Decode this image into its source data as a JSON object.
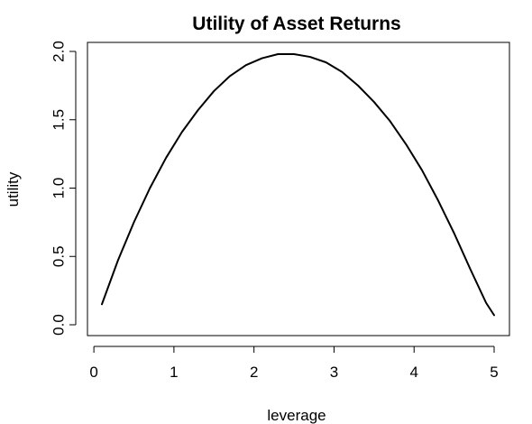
{
  "chart_data": {
    "type": "line",
    "title": "Utility of Asset Returns",
    "xlabel": "leverage",
    "ylabel": "utility",
    "xlim": [
      0.1,
      5.0
    ],
    "ylim": [
      0.0,
      2.0
    ],
    "x_ticks": [
      0,
      1,
      2,
      3,
      4,
      5
    ],
    "y_ticks": [
      0.0,
      0.5,
      1.0,
      1.5,
      2.0
    ],
    "x_tick_labels": [
      "0",
      "1",
      "2",
      "3",
      "4",
      "5"
    ],
    "y_tick_labels": [
      "0.0",
      "0.5",
      "1.0",
      "1.5",
      "2.0"
    ],
    "grid": false,
    "legend": "none",
    "line_color": "#000000",
    "series": [
      {
        "x": [
          0.1,
          0.3,
          0.5,
          0.7,
          0.9,
          1.1,
          1.3,
          1.5,
          1.7,
          1.9,
          2.1,
          2.3,
          2.5,
          2.7,
          2.9,
          3.1,
          3.3,
          3.5,
          3.7,
          3.9,
          4.1,
          4.3,
          4.5,
          4.7,
          4.9,
          5.0
        ],
        "values": [
          0.15,
          0.47,
          0.75,
          1.0,
          1.22,
          1.41,
          1.57,
          1.71,
          1.82,
          1.9,
          1.95,
          1.98,
          1.98,
          1.96,
          1.92,
          1.85,
          1.75,
          1.63,
          1.49,
          1.32,
          1.13,
          0.91,
          0.67,
          0.41,
          0.16,
          0.07
        ]
      }
    ]
  }
}
